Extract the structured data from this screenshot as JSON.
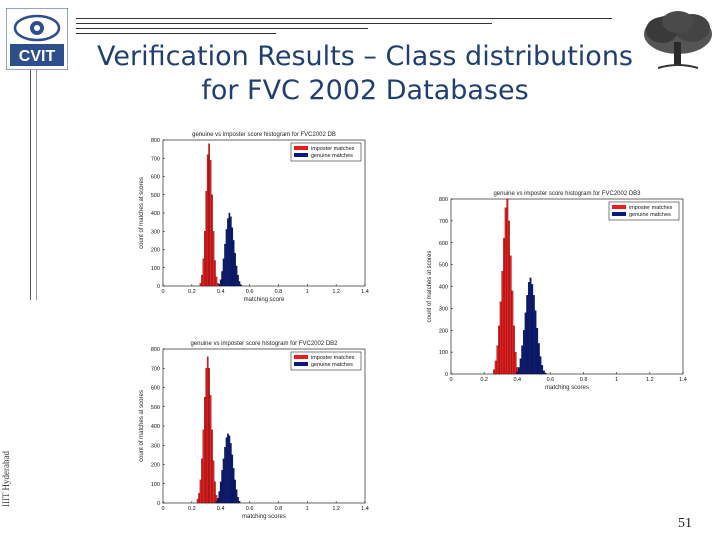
{
  "slide": {
    "title_line1": "Verification Results – Class distributions",
    "title_line2": "for FVC 2002 Databases",
    "logo_text": "CVIT",
    "side_text": "IIIT Hyderabad",
    "page_number": "51"
  },
  "colors": {
    "imposter": "#ee1c1c",
    "genuine": "#0a1a7a",
    "title": "#1f3f70"
  },
  "chart_data": [
    {
      "type": "bar",
      "title": "genuine vs imposter score histogram for FVC2002 DB",
      "xlabel": "matching score",
      "ylabel": "count of matches at scores",
      "xlim": [
        0,
        1.4
      ],
      "ylim": [
        0,
        800
      ],
      "xticks": [
        "0",
        "0.2",
        "0.4",
        "0.6",
        "0.8",
        "1",
        "1.2",
        "1.4"
      ],
      "yticks": [
        "0",
        "100",
        "200",
        "300",
        "400",
        "500",
        "600",
        "700",
        "800"
      ],
      "legend": "top-right",
      "series": [
        {
          "name": "imposter matches",
          "color": "#ee1c1c",
          "x": [
            0.26,
            0.27,
            0.28,
            0.29,
            0.3,
            0.31,
            0.32,
            0.33,
            0.34,
            0.35,
            0.36,
            0.37,
            0.38
          ],
          "values": [
            15,
            60,
            150,
            300,
            520,
            720,
            780,
            690,
            500,
            300,
            140,
            50,
            15
          ]
        },
        {
          "name": "genuine matches",
          "color": "#0a1a7a",
          "x": [
            0.39,
            0.4,
            0.41,
            0.42,
            0.43,
            0.44,
            0.45,
            0.46,
            0.47,
            0.48,
            0.49,
            0.5,
            0.51,
            0.52,
            0.53,
            0.54
          ],
          "values": [
            10,
            35,
            80,
            150,
            230,
            310,
            370,
            400,
            380,
            320,
            250,
            180,
            110,
            60,
            25,
            8
          ]
        }
      ]
    },
    {
      "type": "bar",
      "title": "genuine vs imposter score histogram for FVC2002 DB3",
      "xlabel": "matching scores",
      "ylabel": "count of matches at scores",
      "xlim": [
        0,
        1.4
      ],
      "ylim": [
        0,
        800
      ],
      "xticks": [
        "0",
        "0.2",
        "0.4",
        "0.6",
        "0.8",
        "1",
        "1.2",
        "1.4"
      ],
      "yticks": [
        "0",
        "100",
        "200",
        "300",
        "400",
        "500",
        "600",
        "700",
        "800"
      ],
      "legend": "top-right",
      "series": [
        {
          "name": "imposter matches",
          "color": "#ee1c1c",
          "x": [
            0.26,
            0.27,
            0.28,
            0.29,
            0.3,
            0.31,
            0.32,
            0.33,
            0.34,
            0.35,
            0.36,
            0.37,
            0.38,
            0.39,
            0.4
          ],
          "values": [
            20,
            60,
            130,
            220,
            330,
            470,
            620,
            760,
            800,
            700,
            540,
            380,
            220,
            100,
            30
          ]
        },
        {
          "name": "genuine matches",
          "color": "#0a1a7a",
          "x": [
            0.4,
            0.41,
            0.42,
            0.43,
            0.44,
            0.45,
            0.46,
            0.47,
            0.48,
            0.49,
            0.5,
            0.51,
            0.52,
            0.53,
            0.54,
            0.55,
            0.56,
            0.57
          ],
          "values": [
            10,
            30,
            70,
            130,
            200,
            280,
            360,
            420,
            440,
            410,
            360,
            290,
            210,
            140,
            80,
            40,
            15,
            5
          ]
        }
      ]
    },
    {
      "type": "bar",
      "title": "genuine vs imposter score histogram for FVC2002 DB2",
      "xlabel": "matching scores",
      "ylabel": "count of matches at scores",
      "xlim": [
        0,
        1.4
      ],
      "ylim": [
        0,
        800
      ],
      "xticks": [
        "0",
        "0.2",
        "0.4",
        "0.6",
        "0.8",
        "1",
        "1.2",
        "1.4"
      ],
      "yticks": [
        "0",
        "100",
        "200",
        "300",
        "400",
        "500",
        "600",
        "700",
        "800"
      ],
      "legend": "top-right",
      "series": [
        {
          "name": "imposter matches",
          "color": "#ee1c1c",
          "x": [
            0.24,
            0.25,
            0.26,
            0.27,
            0.28,
            0.29,
            0.3,
            0.31,
            0.32,
            0.33,
            0.34,
            0.35,
            0.36,
            0.37,
            0.38
          ],
          "values": [
            20,
            50,
            120,
            230,
            380,
            550,
            700,
            760,
            700,
            560,
            380,
            220,
            110,
            40,
            10
          ]
        },
        {
          "name": "genuine matches",
          "color": "#0a1a7a",
          "x": [
            0.37,
            0.38,
            0.39,
            0.4,
            0.41,
            0.42,
            0.43,
            0.44,
            0.45,
            0.46,
            0.47,
            0.48,
            0.49,
            0.5,
            0.51,
            0.52,
            0.53
          ],
          "values": [
            10,
            25,
            60,
            110,
            170,
            230,
            290,
            340,
            360,
            350,
            310,
            250,
            180,
            120,
            70,
            30,
            10
          ]
        }
      ]
    }
  ]
}
